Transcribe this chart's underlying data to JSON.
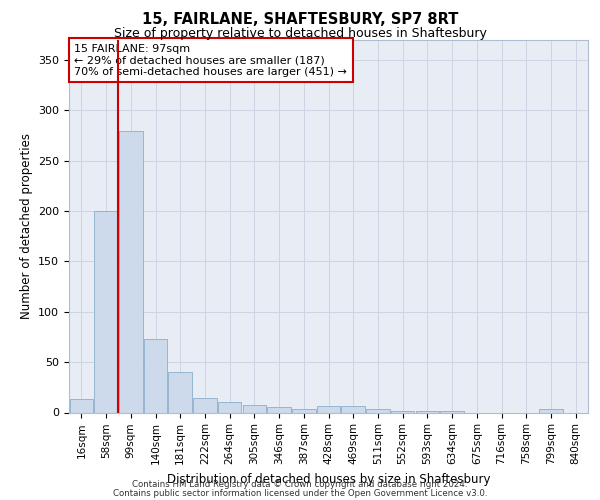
{
  "title1": "15, FAIRLANE, SHAFTESBURY, SP7 8RT",
  "title2": "Size of property relative to detached houses in Shaftesbury",
  "xlabel": "Distribution of detached houses by size in Shaftesbury",
  "ylabel": "Number of detached properties",
  "footer1": "Contains HM Land Registry data © Crown copyright and database right 2024.",
  "footer2": "Contains public sector information licensed under the Open Government Licence v3.0.",
  "annotation_line1": "15 FAIRLANE: 97sqm",
  "annotation_line2": "← 29% of detached houses are smaller (187)",
  "annotation_line3": "70% of semi-detached houses are larger (451) →",
  "bar_color": "#cddaeb",
  "bar_edge_color": "#8aaecb",
  "vline_color": "#cc0000",
  "vline_x_index": 2.0,
  "categories": [
    "16sqm",
    "58sqm",
    "99sqm",
    "140sqm",
    "181sqm",
    "222sqm",
    "264sqm",
    "305sqm",
    "346sqm",
    "387sqm",
    "428sqm",
    "469sqm",
    "511sqm",
    "552sqm",
    "593sqm",
    "634sqm",
    "675sqm",
    "716sqm",
    "758sqm",
    "799sqm",
    "840sqm"
  ],
  "values": [
    13,
    200,
    280,
    73,
    40,
    14,
    10,
    7,
    5,
    3,
    6,
    6,
    3,
    1,
    1,
    1,
    0,
    0,
    0,
    3,
    0
  ],
  "ylim": [
    0,
    370
  ],
  "yticks": [
    0,
    50,
    100,
    150,
    200,
    250,
    300,
    350
  ],
  "grid_color": "#ccd5e3",
  "bg_color": "#e8edf5"
}
